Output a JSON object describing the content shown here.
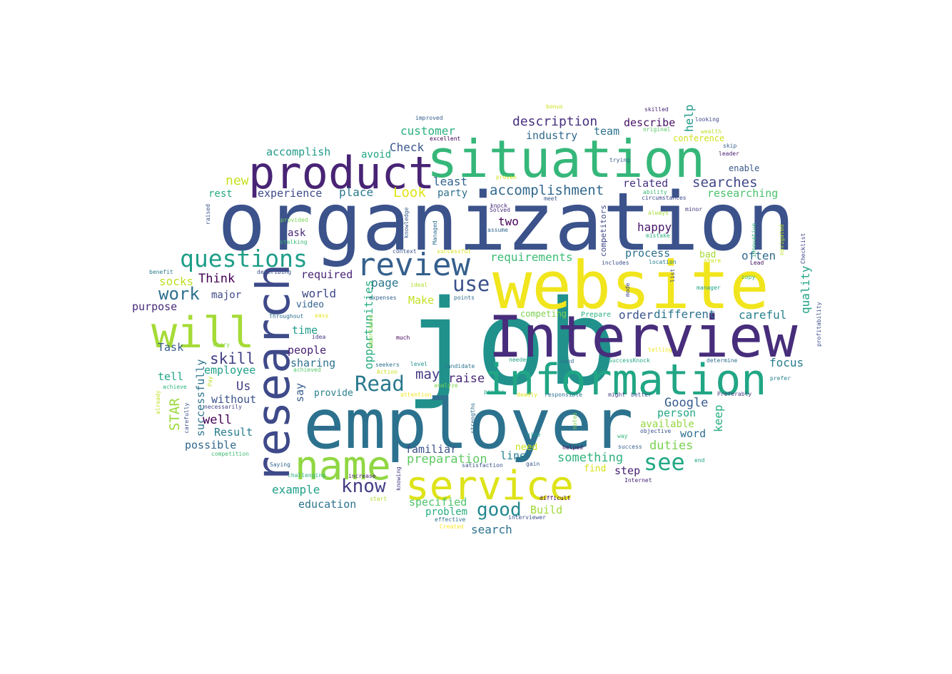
{
  "word_cloud": {
    "words": [
      {
        "text": "job",
        "color": "#21918c"
      },
      {
        "text": "organization",
        "color": "#3b528b"
      },
      {
        "text": "employer",
        "color": "#2c728e"
      },
      {
        "text": "website",
        "color": "#f1e51d"
      },
      {
        "text": "Interview",
        "color": "#472d7b"
      },
      {
        "text": "information",
        "color": "#21a685"
      },
      {
        "text": "situation",
        "color": "#35b779"
      },
      {
        "text": "product",
        "color": "#482475"
      },
      {
        "text": "research",
        "color": "#3e4a89"
      },
      {
        "text": "name",
        "color": "#90d743"
      },
      {
        "text": "service",
        "color": "#dde318"
      },
      {
        "text": "will",
        "color": "#a5db36"
      },
      {
        "text": "review",
        "color": "#355f8d"
      },
      {
        "text": "questions",
        "color": "#1f9e89"
      },
      {
        "text": "Read",
        "color": "#2a788e"
      },
      {
        "text": "use",
        "color": "#3b528b"
      },
      {
        "text": "see",
        "color": "#22a884"
      },
      {
        "text": "know",
        "color": "#433e85"
      },
      {
        "text": "good",
        "color": "#23898e"
      },
      {
        "text": "work",
        "color": "#2d708e"
      },
      {
        "text": "accomplishment",
        "color": "#31688e"
      },
      {
        "text": "searches",
        "color": "#3f4788"
      },
      {
        "text": "description",
        "color": "#472f7d"
      },
      {
        "text": "customer",
        "color": "#2ab07f"
      },
      {
        "text": "Check",
        "color": "#39568c"
      },
      {
        "text": "Look",
        "color": "#e2e418"
      },
      {
        "text": "place",
        "color": "#2a788e"
      },
      {
        "text": "least",
        "color": "#33638d"
      },
      {
        "text": "skill",
        "color": "#424086"
      },
      {
        "text": "may",
        "color": "#443983"
      },
      {
        "text": "raise",
        "color": "#482878"
      },
      {
        "text": "Google",
        "color": "#375b8d"
      },
      {
        "text": "something",
        "color": "#2db27d"
      },
      {
        "text": "preparation",
        "color": "#5ec962"
      },
      {
        "text": "duties",
        "color": "#7ad151"
      },
      {
        "text": "requirements",
        "color": "#3dbc74"
      },
      {
        "text": "process",
        "color": "#2d708e"
      },
      {
        "text": "happy",
        "color": "#481769"
      },
      {
        "text": "related",
        "color": "#46327e"
      },
      {
        "text": "researching",
        "color": "#4ac16d"
      },
      {
        "text": "focus",
        "color": "#287d8e"
      },
      {
        "text": "careful",
        "color": "#26828e"
      },
      {
        "text": "different",
        "color": "#2c738e"
      },
      {
        "text": "order",
        "color": "#3a548c"
      },
      {
        "text": "often",
        "color": "#306a8e"
      },
      {
        "text": "quality",
        "color": "#20a386"
      },
      {
        "text": "help",
        "color": "#1f998a"
      },
      {
        "text": "describe",
        "color": "#471164"
      },
      {
        "text": "team",
        "color": "#2c728e"
      },
      {
        "text": "industry",
        "color": "#31688e"
      },
      {
        "text": "accomplish",
        "color": "#1f9a8a"
      },
      {
        "text": "avoid",
        "color": "#22a785"
      },
      {
        "text": "experience",
        "color": "#3e4989"
      },
      {
        "text": "new",
        "color": "#c8e020"
      },
      {
        "text": "rest",
        "color": "#25ab82"
      },
      {
        "text": "party",
        "color": "#2d708e"
      },
      {
        "text": "two",
        "color": "#440154"
      },
      {
        "text": "ask",
        "color": "#482576"
      },
      {
        "text": "Think",
        "color": "#440154"
      },
      {
        "text": "socks",
        "color": "#bddf26"
      },
      {
        "text": "major",
        "color": "#3e4a89"
      },
      {
        "text": "purpose",
        "color": "#472a7a"
      },
      {
        "text": "required",
        "color": "#482374"
      },
      {
        "text": "world",
        "color": "#3f4889"
      },
      {
        "text": "video",
        "color": "#33638d"
      },
      {
        "text": "Make",
        "color": "#c2df23"
      },
      {
        "text": "page",
        "color": "#2b758e"
      },
      {
        "text": "opportunities",
        "color": "#28ae80"
      },
      {
        "text": "time",
        "color": "#1e9c89"
      },
      {
        "text": "people",
        "color": "#482173"
      },
      {
        "text": "sharing",
        "color": "#2e6f8e"
      },
      {
        "text": "employee",
        "color": "#1fa088"
      },
      {
        "text": "Task",
        "color": "#365d8d"
      },
      {
        "text": "tell",
        "color": "#20a486"
      },
      {
        "text": "successfully",
        "color": "#2c738e"
      },
      {
        "text": "STAR",
        "color": "#9bd93c"
      },
      {
        "text": "Us",
        "color": "#433d84"
      },
      {
        "text": "without",
        "color": "#3b528b"
      },
      {
        "text": "well",
        "color": "#440154"
      },
      {
        "text": "Result",
        "color": "#287c8e"
      },
      {
        "text": "possible",
        "color": "#31678e"
      },
      {
        "text": "say",
        "color": "#365c8d"
      },
      {
        "text": "provide",
        "color": "#277f8e"
      },
      {
        "text": "keep",
        "color": "#29af7f"
      },
      {
        "text": "person",
        "color": "#22a785"
      },
      {
        "text": "available",
        "color": "#95d840"
      },
      {
        "text": "word",
        "color": "#2e6e8e"
      },
      {
        "text": "familiar",
        "color": "#3b518b"
      },
      {
        "text": "line",
        "color": "#26818e"
      },
      {
        "text": "step",
        "color": "#482071"
      },
      {
        "text": "find",
        "color": "#d8e219"
      },
      {
        "text": "need",
        "color": "#cae11f"
      },
      {
        "text": "example",
        "color": "#1f9f88"
      },
      {
        "text": "education",
        "color": "#2b748e"
      },
      {
        "text": "specified",
        "color": "#4ec36b"
      },
      {
        "text": "problem",
        "color": "#29af7f"
      },
      {
        "text": "Build",
        "color": "#a0da39"
      },
      {
        "text": "search",
        "color": "#2c728e"
      },
      {
        "text": "bad",
        "color": "#a8db34"
      },
      {
        "text": "enable",
        "color": "#38588c"
      },
      {
        "text": "competitors",
        "color": "#3e4989"
      },
      {
        "text": "competing",
        "color": "#7cd250"
      },
      {
        "text": "Prepare",
        "color": "#2ab07f"
      },
      {
        "text": "conference",
        "color": "#d0e11c"
      },
      {
        "text": "bonus",
        "color": "#cde11d"
      },
      {
        "text": "improved",
        "color": "#355f8d"
      },
      {
        "text": "excellent",
        "color": "#440154"
      },
      {
        "text": "skilled",
        "color": "#482677"
      },
      {
        "text": "looking",
        "color": "#3f4788"
      },
      {
        "text": "original",
        "color": "#5ac864"
      },
      {
        "text": "wealth",
        "color": "#bade28"
      },
      {
        "text": "skip",
        "color": "#34618d"
      },
      {
        "text": "leader",
        "color": "#481b6d"
      },
      {
        "text": "trying",
        "color": "#355e8d"
      },
      {
        "text": "proven",
        "color": "#d2e21b"
      },
      {
        "text": "meet",
        "color": "#38598c"
      },
      {
        "text": "ability",
        "color": "#3aba76"
      },
      {
        "text": "knock",
        "color": "#482979"
      },
      {
        "text": "Solved",
        "color": "#472c7a"
      },
      {
        "text": "always",
        "color": "#a2da37"
      },
      {
        "text": "minor",
        "color": "#453781"
      },
      {
        "text": "assume",
        "color": "#31688e"
      },
      {
        "text": "mistake",
        "color": "#29af7f"
      },
      {
        "text": "knowledge",
        "color": "#375a8c"
      },
      {
        "text": "Managed",
        "color": "#2e6e8e"
      },
      {
        "text": "successful",
        "color": "#d5e21a"
      },
      {
        "text": "context",
        "color": "#3a548c"
      },
      {
        "text": "stalking",
        "color": "#38b977"
      },
      {
        "text": "raised",
        "color": "#3b528b"
      },
      {
        "text": "provided",
        "color": "#77d153"
      },
      {
        "text": "benefit",
        "color": "#2a788e"
      },
      {
        "text": "describing",
        "color": "#3b518b"
      },
      {
        "text": "includes",
        "color": "#3b518b"
      },
      {
        "text": "location",
        "color": "#287d8e"
      },
      {
        "text": "share",
        "color": "#cde11d"
      },
      {
        "text": "Lead",
        "color": "#471063"
      },
      {
        "text": "copy",
        "color": "#31b57b"
      },
      {
        "text": "manager",
        "color": "#20a486"
      },
      {
        "text": "navigated",
        "color": "#bade28"
      },
      {
        "text": "innovative",
        "color": "#2fb47c"
      },
      {
        "text": "Checklist",
        "color": "#404688"
      },
      {
        "text": "profitability",
        "color": "#3c508b"
      },
      {
        "text": "list",
        "color": "#414487"
      },
      {
        "text": "mode",
        "color": "#414487"
      },
      {
        "text": "expenses",
        "color": "#33638d"
      },
      {
        "text": "ideal",
        "color": "#b0dd2f"
      },
      {
        "text": "points",
        "color": "#306a8e"
      },
      {
        "text": "easy",
        "color": "#e5e419"
      },
      {
        "text": "idea",
        "color": "#453882"
      },
      {
        "text": "Throughout",
        "color": "#2d708e"
      },
      {
        "text": "importance",
        "color": "#8bd646"
      },
      {
        "text": "much",
        "color": "#440154"
      },
      {
        "text": "story",
        "color": "#86d549"
      },
      {
        "text": "achieved",
        "color": "#52c569"
      },
      {
        "text": "seekers",
        "color": "#2c728e"
      },
      {
        "text": "level",
        "color": "#1f948c"
      },
      {
        "text": "Action",
        "color": "#cde11d"
      },
      {
        "text": "candidate",
        "color": "#2b748e"
      },
      {
        "text": "analyze",
        "color": "#7fd34e"
      },
      {
        "text": "needed",
        "color": "#20a486"
      },
      {
        "text": "used",
        "color": "#2f6c8e"
      },
      {
        "text": "SuccessKnock",
        "color": "#22a884"
      },
      {
        "text": "telling",
        "color": "#f1e51d"
      },
      {
        "text": "determine",
        "color": "#2d708e"
      },
      {
        "text": "prefer",
        "color": "#26818e"
      },
      {
        "text": "achieve",
        "color": "#2fb47c"
      },
      {
        "text": "Pay",
        "color": "#b8de29"
      },
      {
        "text": "already",
        "color": "#c2df23"
      },
      {
        "text": "carefully",
        "color": "#3b528b"
      },
      {
        "text": "necessarily",
        "color": "#414487"
      },
      {
        "text": "competition",
        "color": "#3fbc73"
      },
      {
        "text": "attention",
        "color": "#f1e51d"
      },
      {
        "text": "proves",
        "color": "#20a386"
      },
      {
        "text": "deadly",
        "color": "#dde318"
      },
      {
        "text": "responsible",
        "color": "#2c718e"
      },
      {
        "text": "might",
        "color": "#424086"
      },
      {
        "text": "better",
        "color": "#39568c"
      },
      {
        "text": "Preferably",
        "color": "#433d84"
      },
      {
        "text": "strengths",
        "color": "#306a8e"
      },
      {
        "text": "notes",
        "color": "#84d44b"
      },
      {
        "text": "reduce",
        "color": "#375a8c"
      },
      {
        "text": "nice",
        "color": "#1f9a8a"
      },
      {
        "text": "way",
        "color": "#35b779"
      },
      {
        "text": "objective",
        "color": "#3b528b"
      },
      {
        "text": "success",
        "color": "#34608d"
      },
      {
        "text": "end",
        "color": "#20a386"
      },
      {
        "text": "Saying",
        "color": "#31688e"
      },
      {
        "text": "helped",
        "color": "#471365"
      },
      {
        "text": "gain",
        "color": "#38598c"
      },
      {
        "text": "satisfaction",
        "color": "#3a548c"
      },
      {
        "text": "challenging",
        "color": "#29af7f"
      },
      {
        "text": "increase",
        "color": "#481b6d"
      },
      {
        "text": "knowing",
        "color": "#453781"
      },
      {
        "text": "Internet",
        "color": "#482374"
      },
      {
        "text": "difficult",
        "color": "#440154"
      },
      {
        "text": "start",
        "color": "#b0dd2f"
      },
      {
        "text": "effective",
        "color": "#2c738e"
      },
      {
        "text": "interviewer",
        "color": "#3b528b"
      },
      {
        "text": "Created",
        "color": "#fde725"
      },
      {
        "text": "circumstances",
        "color": "#3e4a89"
      }
    ]
  }
}
